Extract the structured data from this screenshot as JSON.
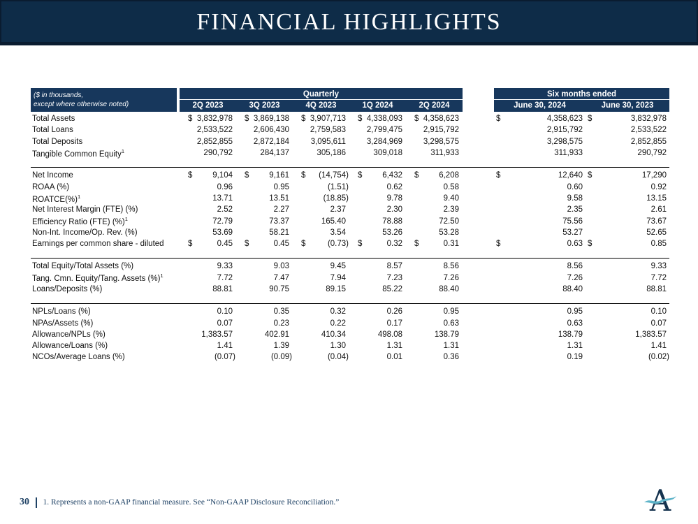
{
  "slide": {
    "title": "FINANCIAL HIGHLIGHTS"
  },
  "table": {
    "unit_note": [
      "($ in thousands,",
      "except where otherwise noted)"
    ],
    "group_headers": {
      "quarterly": "Quarterly",
      "six_months": "Six months ended"
    },
    "quarter_columns": [
      "2Q 2023",
      "3Q 2023",
      "4Q 2023",
      "1Q 2024",
      "2Q 2024"
    ],
    "six_month_columns": [
      "June 30, 2024",
      "June 30, 2023"
    ],
    "sections": [
      {
        "rows": [
          {
            "label": "Total Assets",
            "sup": "",
            "dollar": true,
            "q": [
              "3,832,978",
              "3,869,138",
              "3,907,713",
              "4,338,093",
              "4,358,623"
            ],
            "sm": [
              "4,358,623",
              "3,832,978"
            ]
          },
          {
            "label": "Total Loans",
            "sup": "",
            "dollar": false,
            "q": [
              "2,533,522",
              "2,606,430",
              "2,759,583",
              "2,799,475",
              "2,915,792"
            ],
            "sm": [
              "2,915,792",
              "2,533,522"
            ]
          },
          {
            "label": "Total Deposits",
            "sup": "",
            "dollar": false,
            "q": [
              "2,852,855",
              "2,872,184",
              "3,095,611",
              "3,284,969",
              "3,298,575"
            ],
            "sm": [
              "3,298,575",
              "2,852,855"
            ]
          },
          {
            "label": "Tangible Common Equity",
            "sup": "1",
            "dollar": false,
            "q": [
              "290,792",
              "284,137",
              "305,186",
              "309,018",
              "311,933"
            ],
            "sm": [
              "311,933",
              "290,792"
            ]
          }
        ]
      },
      {
        "rows": [
          {
            "label": "Net Income",
            "sup": "",
            "dollar": true,
            "q": [
              "9,104",
              "9,161",
              "(14,754)",
              "6,432",
              "6,208"
            ],
            "sm": [
              "12,640",
              "17,290"
            ]
          },
          {
            "label": "ROAA (%)",
            "sup": "",
            "dollar": false,
            "q": [
              "0.96",
              "0.95",
              "(1.51)",
              "0.62",
              "0.58"
            ],
            "sm": [
              "0.60",
              "0.92"
            ]
          },
          {
            "label": "ROATCE(%)",
            "sup": "1",
            "dollar": false,
            "q": [
              "13.71",
              "13.51",
              "(18.85)",
              "9.78",
              "9.40"
            ],
            "sm": [
              "9.58",
              "13.15"
            ]
          },
          {
            "label": "Net Interest Margin (FTE) (%)",
            "sup": "",
            "dollar": false,
            "q": [
              "2.52",
              "2.27",
              "2.37",
              "2.30",
              "2.39"
            ],
            "sm": [
              "2.35",
              "2.61"
            ]
          },
          {
            "label": "Efficiency Ratio (FTE) (%)",
            "sup": "1",
            "dollar": false,
            "q": [
              "72.79",
              "73.37",
              "165.40",
              "78.88",
              "72.50"
            ],
            "sm": [
              "75.56",
              "73.67"
            ]
          },
          {
            "label": "Non-Int. Income/Op. Rev. (%)",
            "sup": "",
            "dollar": false,
            "q": [
              "53.69",
              "58.21",
              "3.54",
              "53.26",
              "53.28"
            ],
            "sm": [
              "53.27",
              "52.65"
            ]
          },
          {
            "label": "Earnings per common share - diluted",
            "sup": "",
            "dollar": true,
            "q": [
              "0.45",
              "0.45",
              "(0.73)",
              "0.32",
              "0.31"
            ],
            "sm": [
              "0.63",
              "0.85"
            ]
          }
        ]
      },
      {
        "rows": [
          {
            "label": "Total Equity/Total Assets (%)",
            "sup": "",
            "dollar": false,
            "q": [
              "9.33",
              "9.03",
              "9.45",
              "8.57",
              "8.56"
            ],
            "sm": [
              "8.56",
              "9.33"
            ]
          },
          {
            "label": "Tang. Cmn. Equity/Tang. Assets (%)",
            "sup": "1",
            "dollar": false,
            "q": [
              "7.72",
              "7.47",
              "7.94",
              "7.23",
              "7.26"
            ],
            "sm": [
              "7.26",
              "7.72"
            ]
          },
          {
            "label": "Loans/Deposits (%)",
            "sup": "",
            "dollar": false,
            "q": [
              "88.81",
              "90.75",
              "89.15",
              "85.22",
              "88.40"
            ],
            "sm": [
              "88.40",
              "88.81"
            ]
          }
        ]
      },
      {
        "rows": [
          {
            "label": "NPLs/Loans (%)",
            "sup": "",
            "dollar": false,
            "q": [
              "0.10",
              "0.35",
              "0.32",
              "0.26",
              "0.95"
            ],
            "sm": [
              "0.95",
              "0.10"
            ]
          },
          {
            "label": "NPAs/Assets (%)",
            "sup": "",
            "dollar": false,
            "q": [
              "0.07",
              "0.23",
              "0.22",
              "0.17",
              "0.63"
            ],
            "sm": [
              "0.63",
              "0.07"
            ]
          },
          {
            "label": "Allowance/NPLs (%)",
            "sup": "",
            "dollar": false,
            "q": [
              "1,383.57",
              "402.91",
              "410.34",
              "498.08",
              "138.79"
            ],
            "sm": [
              "138.79",
              "1,383.57"
            ]
          },
          {
            "label": "Allowance/Loans (%)",
            "sup": "",
            "dollar": false,
            "q": [
              "1.41",
              "1.39",
              "1.30",
              "1.31",
              "1.31"
            ],
            "sm": [
              "1.31",
              "1.41"
            ]
          },
          {
            "label": "NCOs/Average Loans (%)",
            "sup": "",
            "dollar": false,
            "q": [
              "(0.07)",
              "(0.09)",
              "(0.04)",
              "0.01",
              "0.36"
            ],
            "sm": [
              "0.19",
              "(0.02)"
            ]
          }
        ]
      }
    ]
  },
  "footer": {
    "page_number": "30",
    "footnote": "1. Represents a non-GAAP financial measure. See “Non-GAAP Disclosure Reconciliation.”"
  },
  "logo": {
    "letter": "A"
  },
  "colors": {
    "banner": "#0e2c48",
    "banner_edge": "#0a1c30",
    "header_band": "#17375c",
    "footer_text": "#1f4265",
    "logo_navy": "#16334f",
    "logo_teal": "#5fb4c9"
  }
}
